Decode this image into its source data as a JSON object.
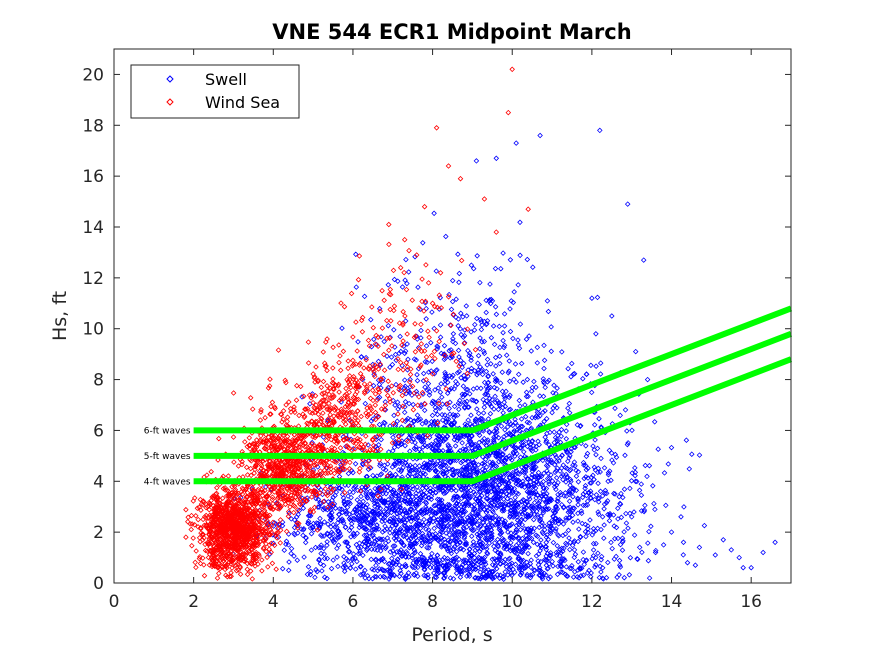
{
  "chart_data": {
    "type": "scatter",
    "title": "VNE 544 ECR1 Midpoint March",
    "xlabel": "Period, s",
    "ylabel": "Hs, ft",
    "xlim": [
      0,
      17
    ],
    "ylim": [
      0,
      21
    ],
    "xticks": [
      "0",
      "2",
      "4",
      "6",
      "8",
      "10",
      "12",
      "14",
      "16"
    ],
    "yticks": [
      "0",
      "2",
      "4",
      "6",
      "8",
      "10",
      "12",
      "14",
      "16",
      "18",
      "20"
    ],
    "legend": {
      "placement": "top-left",
      "entries": [
        {
          "name": "Swell",
          "color": "#0000ff",
          "marker": "diamond"
        },
        {
          "name": "Wind Sea",
          "color": "#ff0000",
          "marker": "diamond"
        }
      ]
    },
    "threshold_lines": [
      {
        "label": "6-ft waves",
        "color": "#00ff00",
        "points": [
          [
            2,
            6
          ],
          [
            9,
            6
          ],
          [
            17,
            10.8
          ]
        ]
      },
      {
        "label": "5-ft waves",
        "color": "#00ff00",
        "points": [
          [
            2,
            5
          ],
          [
            9,
            5
          ],
          [
            17,
            9.8
          ]
        ]
      },
      {
        "label": "4-ft waves",
        "color": "#00ff00",
        "points": [
          [
            2,
            4
          ],
          [
            9,
            4
          ],
          [
            17,
            8.8
          ]
        ]
      }
    ],
    "series": [
      {
        "name": "Swell",
        "color": "#0000ff",
        "points": [
          [
            12.2,
            17.8
          ],
          [
            12.9,
            14.9
          ],
          [
            13.3,
            12.7
          ],
          [
            12.1,
            9.8
          ],
          [
            12.5,
            10.5
          ],
          [
            12.0,
            11.2
          ],
          [
            13.1,
            9.1
          ],
          [
            13.4,
            8.0
          ],
          [
            9.1,
            16.6
          ],
          [
            10.1,
            17.3
          ],
          [
            10.7,
            17.6
          ],
          [
            9.6,
            16.7
          ],
          [
            16.0,
            0.6
          ],
          [
            15.8,
            0.6
          ],
          [
            14.6,
            0.7
          ],
          [
            14.7,
            1.4
          ],
          [
            15.1,
            1.1
          ],
          [
            13.2,
            1.4
          ],
          [
            15.3,
            1.7
          ],
          [
            16.3,
            1.2
          ],
          [
            16.6,
            1.6
          ],
          [
            14.0,
            2.0
          ],
          [
            14.3,
            1.6
          ],
          [
            13.8,
            1.5
          ],
          [
            15.7,
            1.0
          ],
          [
            13.0,
            2.6
          ],
          [
            12.7,
            0.7
          ],
          [
            14.4,
            0.8
          ],
          [
            13.6,
            1.2
          ],
          [
            15.5,
            1.3
          ]
        ],
        "clusters": [
          {
            "x_mean": 8.6,
            "x_sd": 1.4,
            "y_mean": 3.6,
            "y_sd": 2.4,
            "count": 2000
          },
          {
            "x_mean": 6.2,
            "x_sd": 1.2,
            "y_mean": 2.4,
            "y_sd": 1.1,
            "count": 650
          },
          {
            "x_mean": 10.6,
            "x_sd": 1.1,
            "y_mean": 3.2,
            "y_sd": 2.0,
            "count": 700
          },
          {
            "x_mean": 8.8,
            "x_sd": 1.2,
            "y_mean": 8.0,
            "y_sd": 2.5,
            "count": 350
          },
          {
            "x_mean": 12.3,
            "x_sd": 0.9,
            "y_mean": 3.6,
            "y_sd": 2.4,
            "count": 150
          }
        ]
      },
      {
        "name": "Wind Sea",
        "color": "#ff0000",
        "points": [
          [
            10.0,
            20.2
          ],
          [
            9.9,
            18.5
          ],
          [
            8.1,
            17.9
          ],
          [
            8.4,
            16.4
          ],
          [
            8.7,
            15.9
          ],
          [
            9.3,
            15.1
          ],
          [
            7.8,
            14.8
          ],
          [
            6.9,
            14.1
          ],
          [
            7.3,
            13.5
          ],
          [
            7.6,
            12.9
          ],
          [
            8.2,
            12.2
          ],
          [
            7.9,
            11.8
          ],
          [
            8.0,
            11.0
          ],
          [
            10.4,
            14.7
          ],
          [
            9.6,
            13.8
          ],
          [
            7.2,
            12.4
          ]
        ],
        "clusters": [
          {
            "x_mean": 3.0,
            "x_sd": 0.45,
            "y_mean": 2.1,
            "y_sd": 0.75,
            "count": 1200
          },
          {
            "x_mean": 4.3,
            "x_sd": 0.55,
            "y_mean": 4.6,
            "y_sd": 0.9,
            "count": 750
          },
          {
            "x_mean": 5.6,
            "x_sd": 0.7,
            "y_mean": 6.4,
            "y_sd": 1.2,
            "count": 400
          },
          {
            "x_mean": 7.1,
            "x_sd": 0.8,
            "y_mean": 9.2,
            "y_sd": 1.6,
            "count": 160
          }
        ]
      }
    ]
  }
}
